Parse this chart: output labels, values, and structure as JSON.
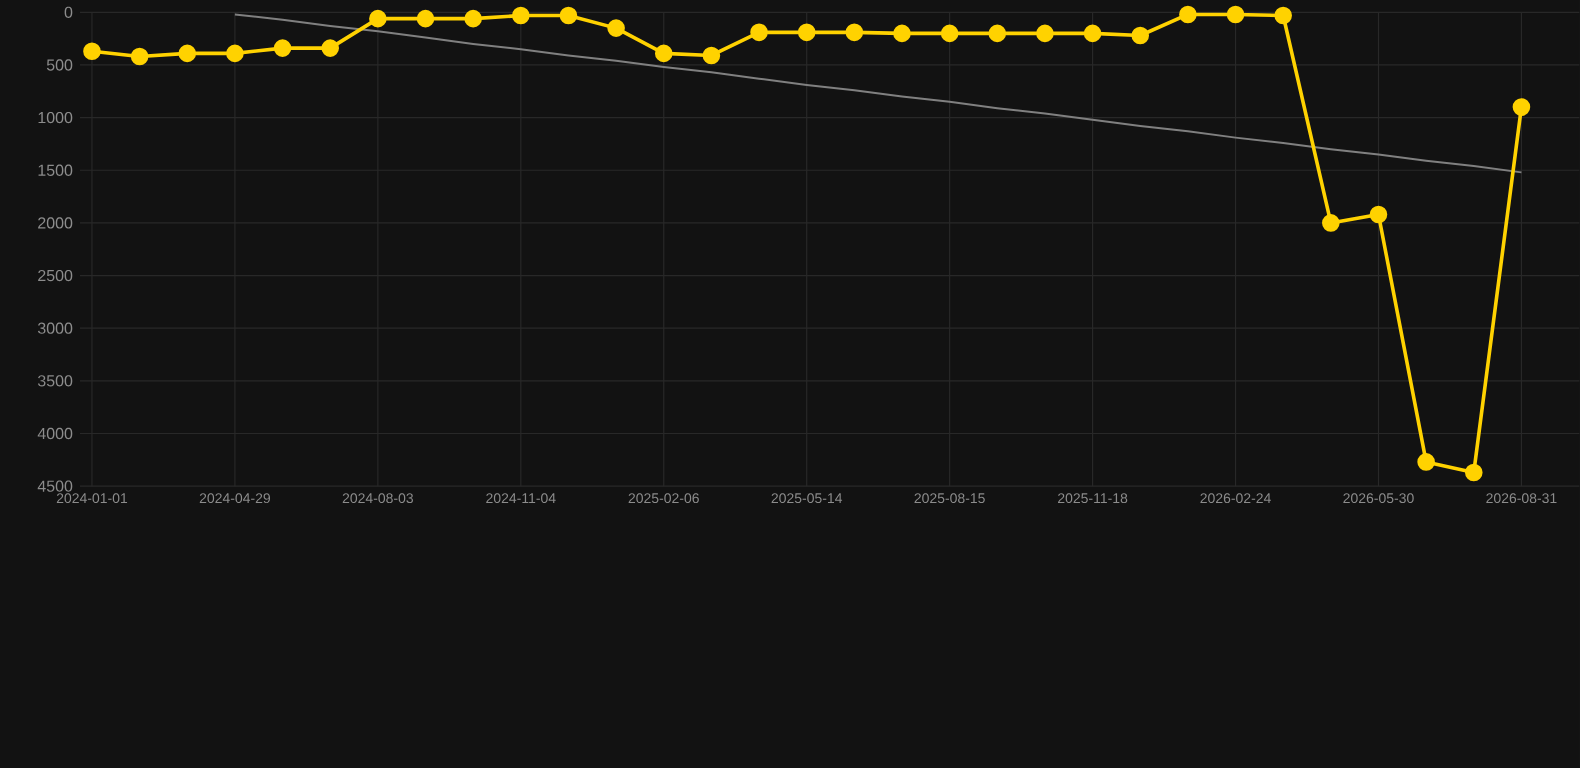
{
  "chart_data": {
    "type": "line",
    "categories": [
      "2024-01-01",
      null,
      null,
      "2024-04-29",
      null,
      null,
      "2024-08-03",
      null,
      null,
      "2024-11-04",
      null,
      null,
      "2025-02-06",
      null,
      null,
      "2025-05-14",
      null,
      null,
      "2025-08-15",
      null,
      null,
      "2025-11-18",
      null,
      null,
      "2026-02-24",
      null,
      null,
      "2026-05-30",
      null,
      null,
      "2026-08-31"
    ],
    "ylim": [
      4500,
      0
    ],
    "yticks": [
      0,
      500,
      1000,
      1500,
      2000,
      2500,
      3000,
      3500,
      4000,
      4500
    ],
    "grid": true,
    "series": [
      {
        "color": "#ffd200",
        "marker": "circle",
        "values": [
          370,
          420,
          390,
          390,
          340,
          340,
          60,
          60,
          60,
          30,
          30,
          150,
          390,
          410,
          190,
          190,
          190,
          200,
          200,
          200,
          200,
          200,
          220,
          20,
          20,
          30,
          2000,
          1920,
          4270,
          4370,
          900
        ]
      },
      {
        "color": "#808080",
        "marker": "none",
        "values": [
          null,
          null,
          null,
          20,
          70,
          130,
          180,
          240,
          300,
          350,
          410,
          460,
          520,
          570,
          630,
          690,
          740,
          800,
          850,
          910,
          960,
          1020,
          1080,
          1130,
          1190,
          1240,
          1300,
          1350,
          1410,
          1460,
          1520
        ]
      }
    ]
  }
}
